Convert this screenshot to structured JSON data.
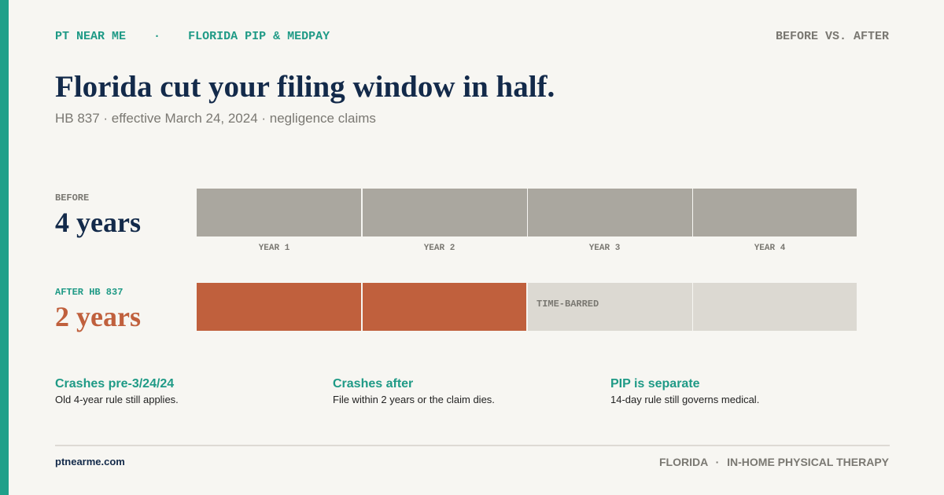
{
  "header": {
    "brand": "PT NEAR ME",
    "separator": "·",
    "topic": "FLORIDA PIP & MEDPAY",
    "tag": "BEFORE VS. AFTER"
  },
  "title": "Florida cut your filing window in half.",
  "subtitle": "HB 837 · effective March 24, 2024 · negligence claims",
  "before": {
    "label": "BEFORE",
    "period": "4 years",
    "years": [
      "YEAR 1",
      "YEAR 2",
      "YEAR 3",
      "YEAR 4"
    ]
  },
  "after": {
    "label": "AFTER HB 837",
    "period": "2 years",
    "barred": "TIME-BARRED"
  },
  "notes": [
    {
      "title": "Crashes pre-3/24/24",
      "text": "Old 4-year rule still applies."
    },
    {
      "title": "Crashes after",
      "text": "File within 2 years or the claim dies."
    },
    {
      "title": "PIP is separate",
      "text": "14-day rule still governs medical."
    }
  ],
  "footer": {
    "site": "ptnearme.com",
    "region": "FLORIDA",
    "separator": "·",
    "service": "IN-HOME PHYSICAL THERAPY"
  }
}
